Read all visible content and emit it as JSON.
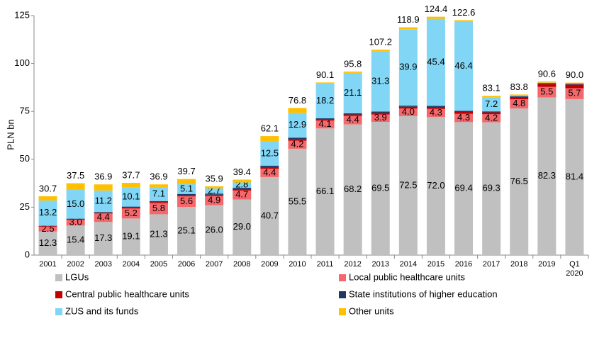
{
  "chart_data": {
    "type": "stacked-bar",
    "y_label": "PLN bn",
    "categories": [
      "2001",
      "2002",
      "2003",
      "2004",
      "2005",
      "2006",
      "2007",
      "2008",
      "2009",
      "2010",
      "2011",
      "2012",
      "2013",
      "2014",
      "2015",
      "2016",
      "2017",
      "2018",
      "2019",
      "Q1 2020"
    ],
    "ylim": [
      0,
      125
    ],
    "yticks": [
      0,
      25,
      50,
      75,
      100,
      125
    ],
    "series": [
      {
        "name": "LGUs",
        "color": "#c0c0c0",
        "values": [
          12.3,
          15.4,
          17.3,
          19.1,
          21.3,
          25.1,
          26.0,
          29.0,
          40.7,
          55.5,
          66.1,
          68.2,
          69.5,
          72.5,
          72.0,
          69.4,
          69.3,
          76.5,
          82.3,
          81.4
        ],
        "value_labels": [
          "12.3",
          "15.4",
          "17.3",
          "19.1",
          "21.3",
          "25.1",
          "26.0",
          "29.0",
          "40.7",
          "55.5",
          "66.1",
          "68.2",
          "69.5",
          "72.5",
          "72.0",
          "69.4",
          "69.3",
          "76.5",
          "82.3",
          "81.4"
        ]
      },
      {
        "name": "Local public healthcare units",
        "color": "#f4686b",
        "values": [
          2.5,
          3.0,
          4.4,
          5.2,
          5.8,
          5.6,
          4.9,
          4.7,
          4.4,
          4.2,
          4.1,
          4.4,
          3.9,
          4.0,
          4.3,
          4.3,
          4.2,
          4.8,
          5.5,
          5.7
        ],
        "value_labels": [
          "2.5",
          "3.0",
          "4.4",
          "5.2",
          "5.8",
          "5.6",
          "4.9",
          "4.7",
          "4.4",
          "4.2",
          "4.1",
          "4.4",
          "3.9",
          "4.0",
          "4.3",
          "4.3",
          "4.2",
          "4.8",
          "5.5",
          "5.7"
        ]
      },
      {
        "name": "Central public healthcare units",
        "color": "#c00000",
        "values": [
          0.3,
          0.3,
          0.4,
          0.5,
          0.6,
          0.6,
          0.6,
          0.7,
          0.8,
          0.8,
          0.6,
          0.8,
          0.9,
          0.9,
          1.0,
          1.0,
          1.0,
          1.2,
          1.6,
          1.9
        ]
      },
      {
        "name": "State institutions of higher education",
        "color": "#1f3864",
        "values": [
          0.2,
          0.3,
          0.4,
          0.5,
          0.5,
          0.6,
          0.6,
          0.7,
          0.8,
          0.8,
          0.6,
          0.6,
          0.6,
          0.6,
          0.6,
          0.6,
          0.5,
          0.4,
          0.4,
          0.4
        ]
      },
      {
        "name": "ZUS and its funds",
        "color": "#82d6f5",
        "values": [
          13.2,
          15.0,
          11.2,
          10.1,
          7.1,
          5.1,
          2.7,
          2.8,
          12.5,
          12.9,
          18.2,
          21.1,
          31.3,
          39.9,
          45.4,
          46.4,
          7.2,
          0.3,
          0.2,
          0.1
        ],
        "value_labels": [
          "13.2",
          "15.0",
          "11.2",
          "10.1",
          "7.1",
          "5.1",
          "2.7",
          "2.8",
          "12.5",
          "12.9",
          "18.2",
          "21.1",
          "31.3",
          "39.9",
          "45.4",
          "46.4",
          "7.2",
          null,
          null,
          null
        ]
      },
      {
        "name": "Other units",
        "color": "#ffc000",
        "values": [
          2.2,
          3.5,
          3.2,
          2.3,
          1.6,
          2.7,
          1.1,
          1.5,
          2.9,
          2.6,
          0.5,
          0.7,
          1.0,
          1.0,
          1.1,
          0.9,
          0.9,
          0.6,
          0.6,
          0.5
        ]
      }
    ],
    "total_labels": [
      "30.7",
      "37.5",
      "36.9",
      "37.7",
      "36.9",
      "39.7",
      "35.9",
      "39.4",
      "62.1",
      "76.8",
      "90.1",
      "95.8",
      "107.2",
      "118.9",
      "124.4",
      "122.6",
      "83.1",
      "83.8",
      "90.6",
      "90.0"
    ]
  }
}
